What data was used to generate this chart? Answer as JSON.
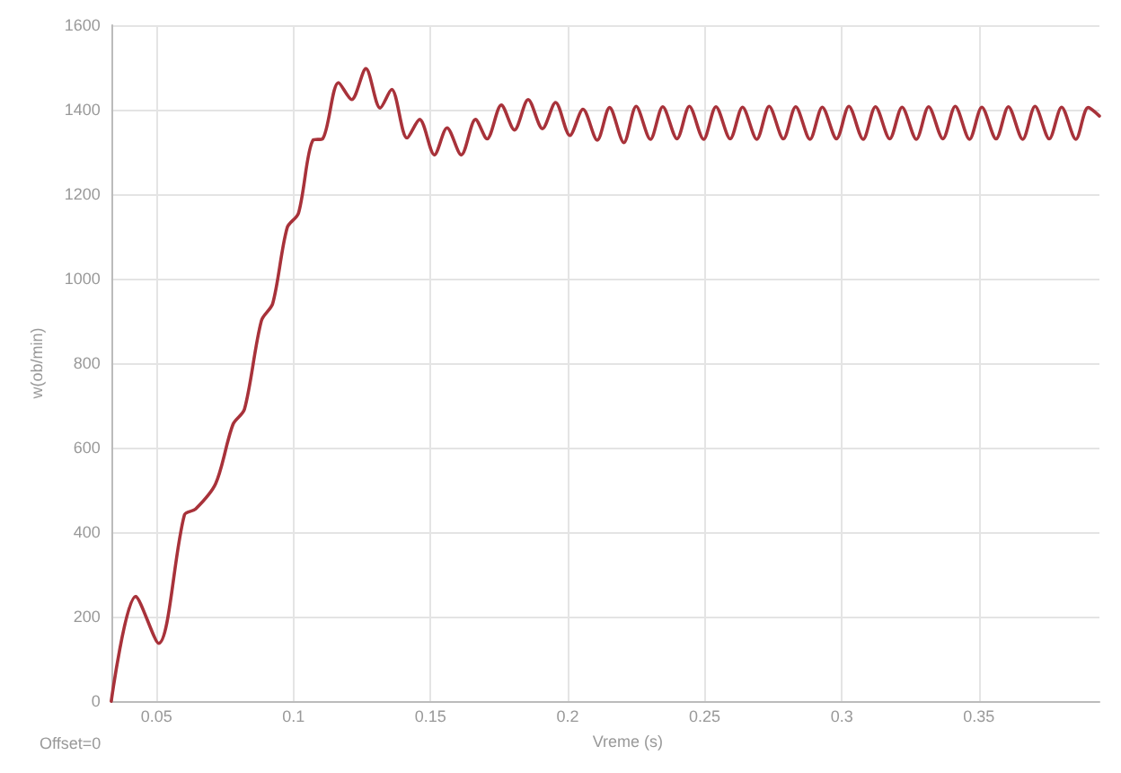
{
  "chart_data": {
    "type": "line",
    "xlabel": "Vreme (s)",
    "ylabel": "w(ob/min)",
    "annotations": [
      "Offset=0"
    ],
    "xlim": [
      0.0335,
      0.394
    ],
    "xticks": [
      0.05,
      0.1,
      0.15,
      0.2,
      0.25,
      0.3,
      0.35
    ],
    "ylim": [
      0,
      1600
    ],
    "yticks": [
      0,
      200,
      400,
      600,
      800,
      1000,
      1200,
      1400,
      1600
    ],
    "grid": true,
    "marker": "none",
    "line_style": "solid",
    "series": [
      {
        "color": "#a8323a",
        "x": [
          0.0335,
          0.0424,
          0.0508,
          0.0602,
          0.0643,
          0.0716,
          0.0779,
          0.0821,
          0.0883,
          0.0924,
          0.0977,
          0.1018,
          0.1071,
          0.1106,
          0.1164,
          0.1212,
          0.1264,
          0.1316,
          0.1358,
          0.1414,
          0.146,
          0.1514,
          0.156,
          0.1612,
          0.1664,
          0.1706,
          0.1758,
          0.1806,
          0.1856,
          0.1908,
          0.1956,
          0.2008,
          0.2056,
          0.2108,
          0.2153,
          0.2205,
          0.225,
          0.2302,
          0.2347,
          0.2399,
          0.2444,
          0.2496,
          0.2541,
          0.2593,
          0.2638,
          0.269,
          0.2735,
          0.2787,
          0.2832,
          0.2884,
          0.2929,
          0.2981,
          0.3026,
          0.3078,
          0.3123,
          0.3175,
          0.322,
          0.3272,
          0.3317,
          0.3369,
          0.3414,
          0.3466,
          0.3511,
          0.3563,
          0.3608,
          0.366,
          0.3705,
          0.3757,
          0.3802,
          0.3854,
          0.3899,
          0.394
        ],
        "values": [
          0,
          248,
          137,
          441,
          455,
          515,
          655,
          691,
          901,
          941,
          1121,
          1155,
          1328,
          1331,
          1464,
          1424,
          1497,
          1404,
          1448,
          1333,
          1377,
          1293,
          1357,
          1293,
          1377,
          1331,
          1411,
          1352,
          1424,
          1355,
          1417,
          1339,
          1401,
          1328,
          1405,
          1322,
          1408,
          1330,
          1407,
          1331,
          1408,
          1330,
          1407,
          1331,
          1406,
          1330,
          1408,
          1331,
          1407,
          1330,
          1406,
          1331,
          1408,
          1330,
          1407,
          1331,
          1406,
          1330,
          1407,
          1331,
          1408,
          1330,
          1406,
          1331,
          1407,
          1330,
          1408,
          1331,
          1406,
          1330,
          1405,
          1385
        ]
      }
    ]
  }
}
